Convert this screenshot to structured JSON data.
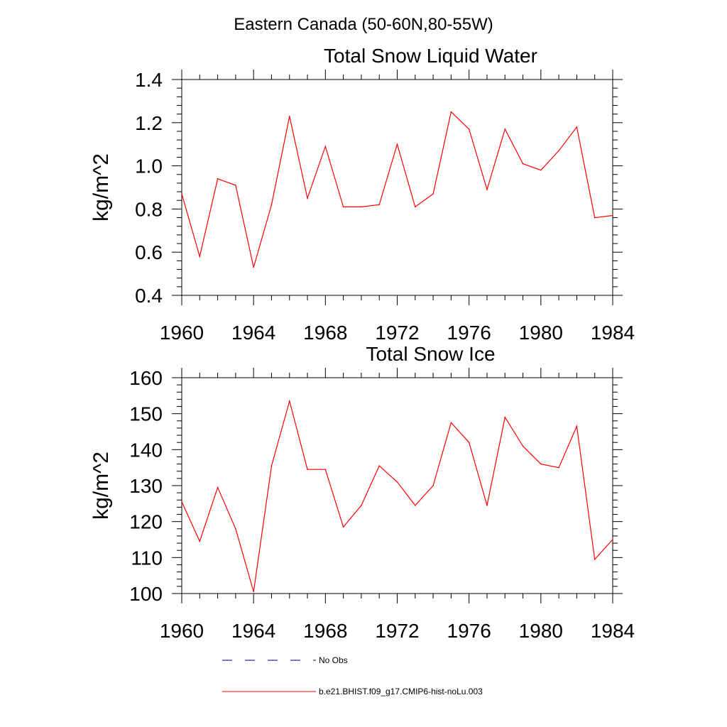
{
  "figure": {
    "title": "Eastern Canada (50-60N,80-55W)"
  },
  "legend": {
    "entries": [
      {
        "label": "No Obs",
        "color": "#000080",
        "dashed": true
      },
      {
        "label": "b.e21.BHIST.f09_g17.CMIP6-hist-noLu.003",
        "color": "#ff0000",
        "dashed": false
      }
    ]
  },
  "colors": {
    "series": "#ff0000",
    "axes": "#000000"
  },
  "chart_data": [
    {
      "type": "line",
      "title": "Total Snow Liquid Water",
      "xlabel": "",
      "ylabel": "kg/m^2",
      "xlim": [
        1960,
        1984
      ],
      "ylim": [
        0.4,
        1.4
      ],
      "xticks": [
        1960,
        1964,
        1968,
        1972,
        1976,
        1980,
        1984
      ],
      "xtick_labels": [
        "1960",
        "1964",
        "1968",
        "1972",
        "1976",
        "1980",
        "1984"
      ],
      "yticks": [
        0.4,
        0.6,
        0.8,
        1.0,
        1.2,
        1.4
      ],
      "ytick_labels": [
        "0.4",
        "0.6",
        "0.8",
        "1.0",
        "1.2",
        "1.4"
      ],
      "grid": false,
      "x": [
        1960,
        1961,
        1962,
        1963,
        1964,
        1965,
        1966,
        1967,
        1968,
        1969,
        1970,
        1971,
        1972,
        1973,
        1974,
        1975,
        1976,
        1977,
        1978,
        1979,
        1980,
        1981,
        1982,
        1983,
        1984
      ],
      "series": [
        {
          "name": "b.e21.BHIST.f09_g17.CMIP6-hist-noLu.003",
          "color": "#ff0000",
          "values": [
            0.87,
            0.58,
            0.94,
            0.91,
            0.53,
            0.82,
            1.23,
            0.85,
            1.09,
            0.81,
            0.81,
            0.82,
            1.1,
            0.81,
            0.87,
            1.25,
            1.17,
            0.89,
            1.17,
            1.01,
            0.98,
            1.07,
            1.18,
            0.76,
            0.77
          ]
        }
      ]
    },
    {
      "type": "line",
      "title": "Total Snow Ice",
      "xlabel": "",
      "ylabel": "kg/m^2",
      "xlim": [
        1960,
        1984
      ],
      "ylim": [
        100,
        160
      ],
      "xticks": [
        1960,
        1964,
        1968,
        1972,
        1976,
        1980,
        1984
      ],
      "xtick_labels": [
        "1960",
        "1964",
        "1968",
        "1972",
        "1976",
        "1980",
        "1984"
      ],
      "yticks": [
        100,
        110,
        120,
        130,
        140,
        150,
        160
      ],
      "ytick_labels": [
        "100",
        "110",
        "120",
        "130",
        "140",
        "150",
        "160"
      ],
      "grid": false,
      "x": [
        1960,
        1961,
        1962,
        1963,
        1964,
        1965,
        1966,
        1967,
        1968,
        1969,
        1970,
        1971,
        1972,
        1973,
        1974,
        1975,
        1976,
        1977,
        1978,
        1979,
        1980,
        1981,
        1982,
        1983,
        1984
      ],
      "series": [
        {
          "name": "b.e21.BHIST.f09_g17.CMIP6-hist-noLu.003",
          "color": "#ff0000",
          "values": [
            125.5,
            114.5,
            129.5,
            118.0,
            100.5,
            135.5,
            153.5,
            134.5,
            134.5,
            118.5,
            124.5,
            135.5,
            131.0,
            124.5,
            130.0,
            147.5,
            142.0,
            124.5,
            149.0,
            141.0,
            136.0,
            135.0,
            146.5,
            109.5,
            115.0
          ]
        }
      ]
    }
  ]
}
